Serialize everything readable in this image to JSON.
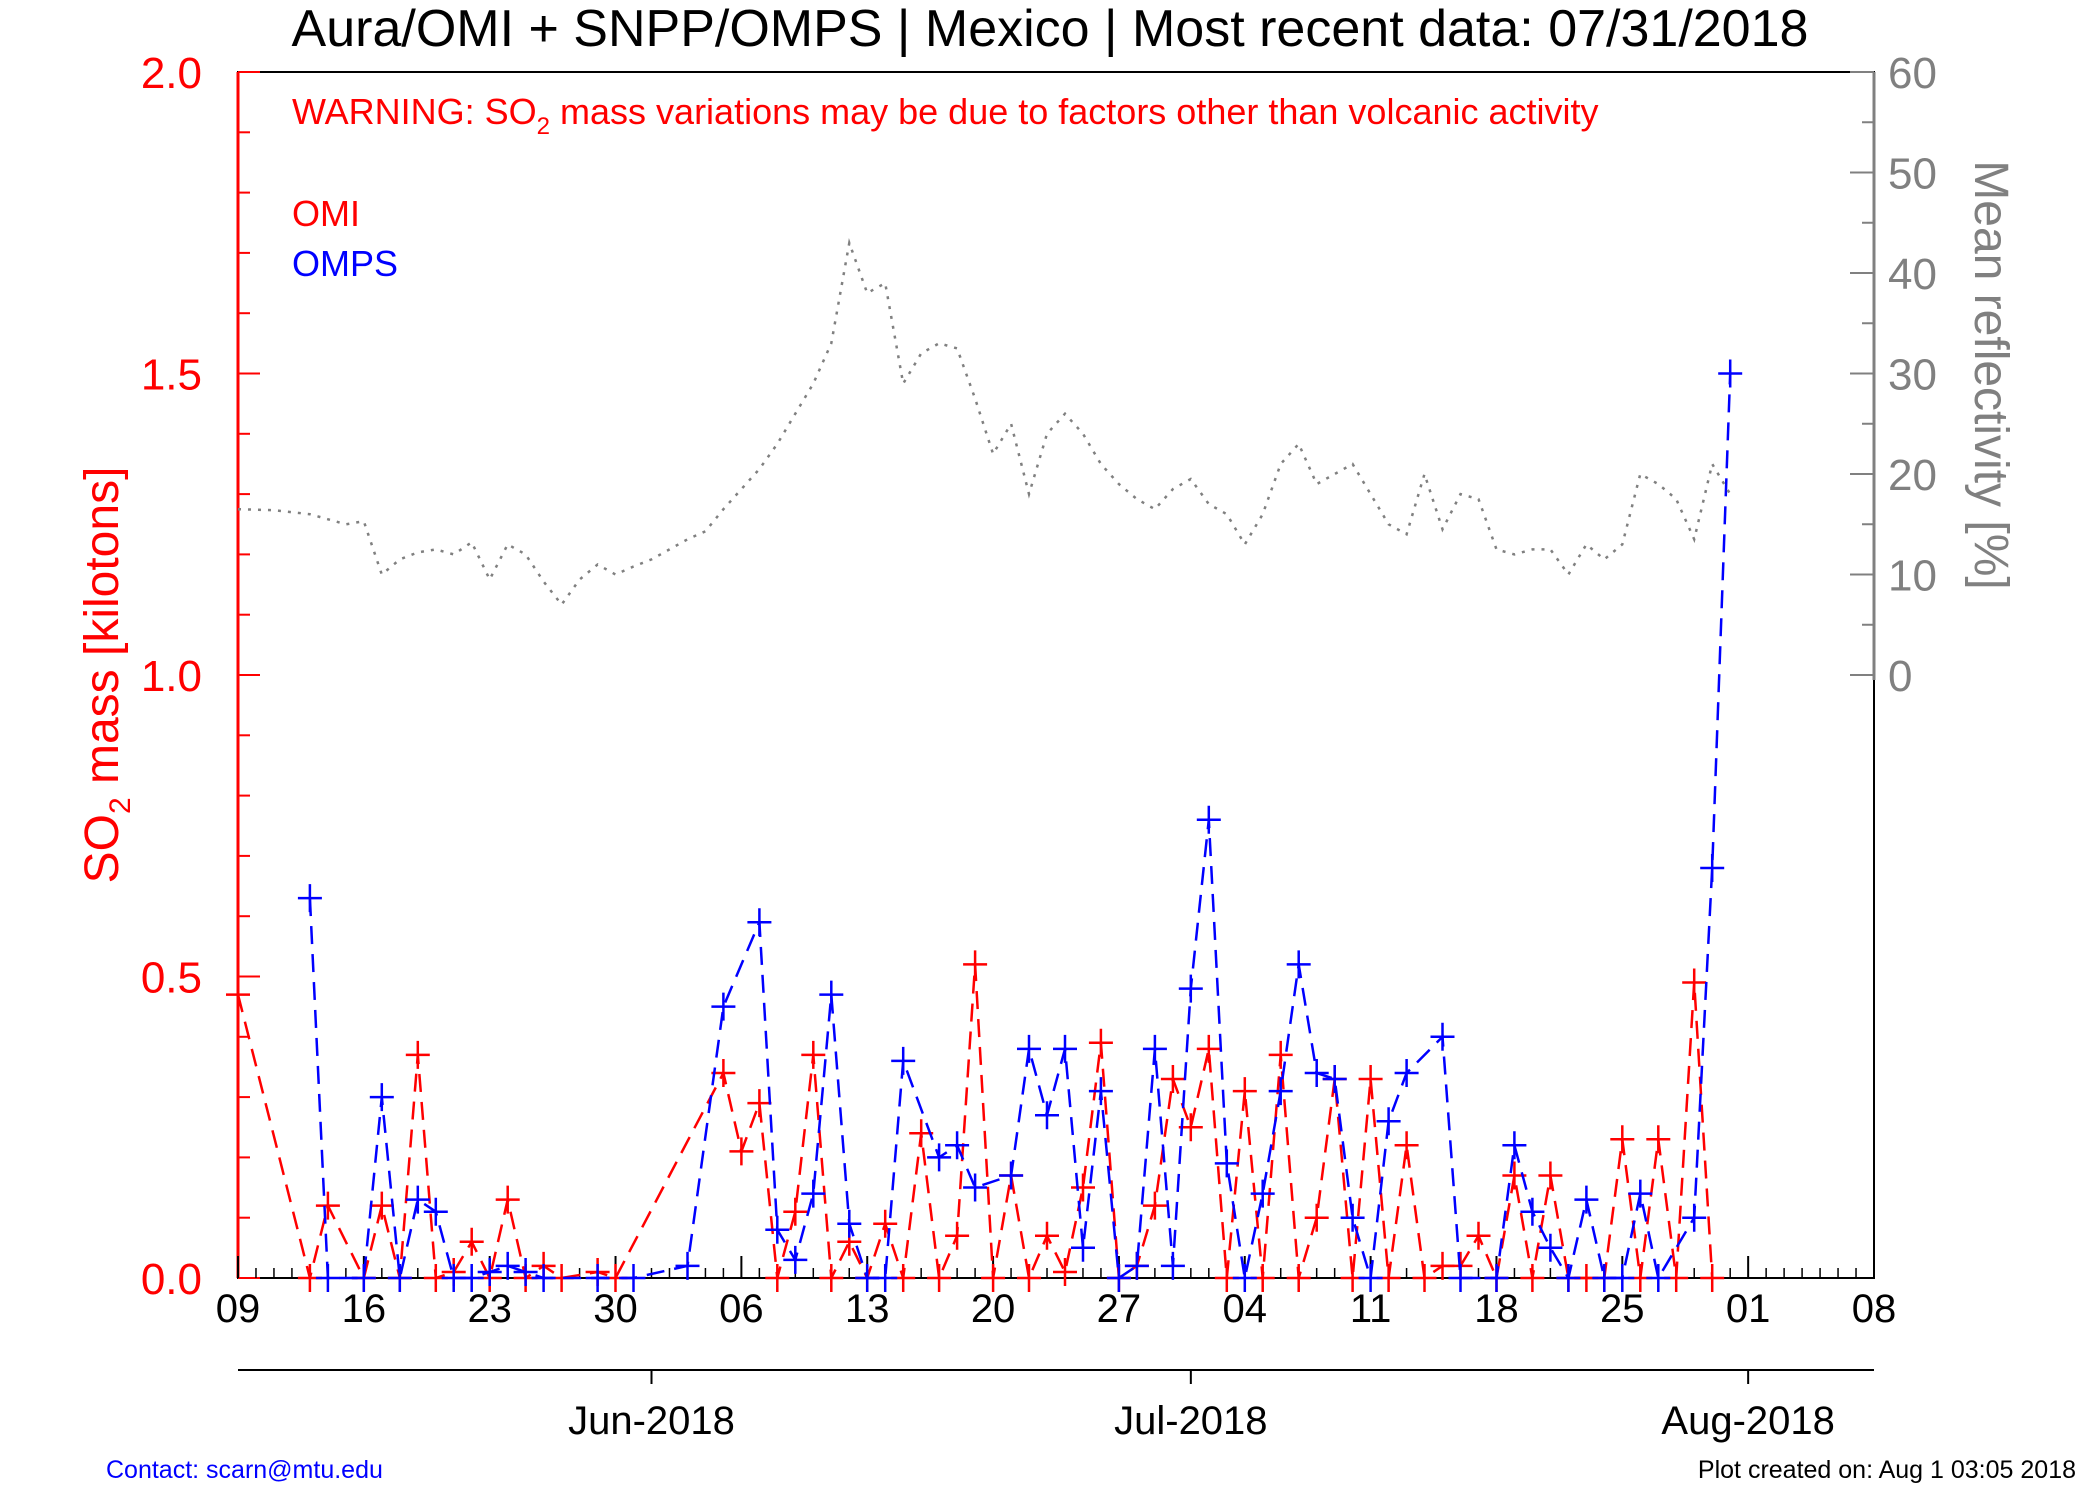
{
  "title": "Aura/OMI + SNPP/OMPS | Mexico | Most recent data: 07/31/2018",
  "warning": {
    "prefix": "WARNING: SO",
    "subscript": "2",
    "suffix": " mass variations may be due to factors other than volcanic activity"
  },
  "contact": "Contact: scarn@mtu.edu",
  "plot_created": "Plot created on: Aug  1 03:05 2018",
  "colors": {
    "omi": "#ff0000",
    "omps": "#0000ff",
    "reflectivity": "#808080",
    "axis": "#000000"
  },
  "chart_data": {
    "type": "line",
    "title": "Aura/OMI + SNPP/OMPS | Mexico | Most recent data: 07/31/2018",
    "ylabel_left": {
      "prefix": "SO",
      "subscript": "2",
      "suffix": " mass [kilotons]"
    },
    "ylabel_right": "Mean reflectivity [%]",
    "x_range": [
      "2018-05-09",
      "2018-08-08"
    ],
    "y_left_range": [
      0,
      2.0
    ],
    "y_right_range": [
      0,
      60
    ],
    "x_tick_labels": [
      "09",
      "16",
      "23",
      "30",
      "06",
      "13",
      "20",
      "27",
      "04",
      "11",
      "18",
      "25",
      "01",
      "08"
    ],
    "x_tick_dates": [
      "2018-05-09",
      "2018-05-16",
      "2018-05-23",
      "2018-05-30",
      "2018-06-06",
      "2018-06-13",
      "2018-06-20",
      "2018-06-27",
      "2018-07-04",
      "2018-07-11",
      "2018-07-18",
      "2018-07-25",
      "2018-08-01",
      "2018-08-08"
    ],
    "month_labels": [
      {
        "date": "2018-06-01",
        "label": "Jun-2018"
      },
      {
        "date": "2018-07-01",
        "label": "Jul-2018"
      },
      {
        "date": "2018-08-01",
        "label": "Aug-2018"
      }
    ],
    "y_left_ticks": [
      "0.0",
      "0.5",
      "1.0",
      "1.5",
      "2.0"
    ],
    "y_right_ticks": [
      "0",
      "10",
      "20",
      "30",
      "40",
      "50",
      "60"
    ],
    "grid": false,
    "legend": {
      "position": "top-left",
      "entries": [
        "OMI",
        "OMPS"
      ]
    },
    "series": [
      {
        "name": "OMI",
        "color": "#ff0000",
        "style": "dashed",
        "marker": "plus",
        "points": [
          [
            "2018-05-09",
            0.47
          ],
          [
            "2018-05-13",
            0.0
          ],
          [
            "2018-05-14",
            0.12
          ],
          [
            "2018-05-16",
            0.0
          ],
          [
            "2018-05-17",
            0.12
          ],
          [
            "2018-05-18",
            0.0
          ],
          [
            "2018-05-19",
            0.37
          ],
          [
            "2018-05-20",
            0.0
          ],
          [
            "2018-05-21",
            0.01
          ],
          [
            "2018-05-22",
            0.06
          ],
          [
            "2018-05-23",
            0.0
          ],
          [
            "2018-05-24",
            0.13
          ],
          [
            "2018-05-25",
            0.0
          ],
          [
            "2018-05-26",
            0.02
          ],
          [
            "2018-05-27",
            0.0
          ],
          [
            "2018-05-29",
            0.01
          ],
          [
            "2018-05-30",
            0.0
          ],
          [
            "2018-06-05",
            0.34
          ],
          [
            "2018-06-06",
            0.21
          ],
          [
            "2018-06-07",
            0.29
          ],
          [
            "2018-06-08",
            0.0
          ],
          [
            "2018-06-09",
            0.11
          ],
          [
            "2018-06-10",
            0.37
          ],
          [
            "2018-06-11",
            0.0
          ],
          [
            "2018-06-12",
            0.06
          ],
          [
            "2018-06-13",
            0.0
          ],
          [
            "2018-06-14",
            0.09
          ],
          [
            "2018-06-15",
            0.0
          ],
          [
            "2018-06-16",
            0.24
          ],
          [
            "2018-06-17",
            0.0
          ],
          [
            "2018-06-18",
            0.07
          ],
          [
            "2018-06-19",
            0.52
          ],
          [
            "2018-06-20",
            0.0
          ],
          [
            "2018-06-21",
            0.17
          ],
          [
            "2018-06-22",
            0.0
          ],
          [
            "2018-06-23",
            0.07
          ],
          [
            "2018-06-24",
            0.01
          ],
          [
            "2018-06-25",
            0.15
          ],
          [
            "2018-06-26",
            0.39
          ],
          [
            "2018-06-27",
            0.0
          ],
          [
            "2018-06-28",
            0.02
          ],
          [
            "2018-06-29",
            0.12
          ],
          [
            "2018-06-30",
            0.33
          ],
          [
            "2018-07-01",
            0.25
          ],
          [
            "2018-07-02",
            0.38
          ],
          [
            "2018-07-03",
            0.0
          ],
          [
            "2018-07-04",
            0.31
          ],
          [
            "2018-07-05",
            0.0
          ],
          [
            "2018-07-06",
            0.37
          ],
          [
            "2018-07-07",
            0.0
          ],
          [
            "2018-07-08",
            0.1
          ],
          [
            "2018-07-09",
            0.33
          ],
          [
            "2018-07-10",
            0.0
          ],
          [
            "2018-07-11",
            0.33
          ],
          [
            "2018-07-12",
            0.0
          ],
          [
            "2018-07-13",
            0.22
          ],
          [
            "2018-07-14",
            0.0
          ],
          [
            "2018-07-15",
            0.02
          ],
          [
            "2018-07-16",
            0.02
          ],
          [
            "2018-07-17",
            0.07
          ],
          [
            "2018-07-18",
            0.0
          ],
          [
            "2018-07-19",
            0.17
          ],
          [
            "2018-07-20",
            0.0
          ],
          [
            "2018-07-21",
            0.17
          ],
          [
            "2018-07-22",
            0.0
          ],
          [
            "2018-07-23",
            0.0
          ],
          [
            "2018-07-24",
            0.0
          ],
          [
            "2018-07-25",
            0.23
          ],
          [
            "2018-07-26",
            0.0
          ],
          [
            "2018-07-27",
            0.23
          ],
          [
            "2018-07-28",
            0.0
          ],
          [
            "2018-07-29",
            0.49
          ],
          [
            "2018-07-30",
            0.0
          ]
        ]
      },
      {
        "name": "OMPS",
        "color": "#0000ff",
        "style": "dashed",
        "marker": "plus",
        "points": [
          [
            "2018-05-13",
            0.63
          ],
          [
            "2018-05-14",
            0.0
          ],
          [
            "2018-05-16",
            0.0
          ],
          [
            "2018-05-17",
            0.3
          ],
          [
            "2018-05-18",
            0.0
          ],
          [
            "2018-05-19",
            0.13
          ],
          [
            "2018-05-20",
            0.11
          ],
          [
            "2018-05-21",
            0.0
          ],
          [
            "2018-05-22",
            0.0
          ],
          [
            "2018-05-23",
            0.01
          ],
          [
            "2018-05-24",
            0.02
          ],
          [
            "2018-05-25",
            0.01
          ],
          [
            "2018-05-26",
            0.0
          ],
          [
            "2018-05-29",
            0.0
          ],
          [
            "2018-05-31",
            0.0
          ],
          [
            "2018-06-03",
            0.02
          ],
          [
            "2018-06-05",
            0.45
          ],
          [
            "2018-06-07",
            0.59
          ],
          [
            "2018-06-08",
            0.08
          ],
          [
            "2018-06-09",
            0.03
          ],
          [
            "2018-06-10",
            0.14
          ],
          [
            "2018-06-11",
            0.47
          ],
          [
            "2018-06-12",
            0.09
          ],
          [
            "2018-06-13",
            0.0
          ],
          [
            "2018-06-14",
            0.0
          ],
          [
            "2018-06-15",
            0.36
          ],
          [
            "2018-06-17",
            0.2
          ],
          [
            "2018-06-18",
            0.22
          ],
          [
            "2018-06-19",
            0.15
          ],
          [
            "2018-06-21",
            0.17
          ],
          [
            "2018-06-22",
            0.38
          ],
          [
            "2018-06-23",
            0.27
          ],
          [
            "2018-06-24",
            0.38
          ],
          [
            "2018-06-25",
            0.05
          ],
          [
            "2018-06-26",
            0.31
          ],
          [
            "2018-06-27",
            0.0
          ],
          [
            "2018-06-28",
            0.02
          ],
          [
            "2018-06-29",
            0.38
          ],
          [
            "2018-06-30",
            0.02
          ],
          [
            "2018-07-01",
            0.48
          ],
          [
            "2018-07-02",
            0.76
          ],
          [
            "2018-07-03",
            0.19
          ],
          [
            "2018-07-04",
            0.0
          ],
          [
            "2018-07-05",
            0.14
          ],
          [
            "2018-07-06",
            0.31
          ],
          [
            "2018-07-07",
            0.52
          ],
          [
            "2018-07-08",
            0.34
          ],
          [
            "2018-07-09",
            0.33
          ],
          [
            "2018-07-10",
            0.1
          ],
          [
            "2018-07-11",
            0.0
          ],
          [
            "2018-07-12",
            0.26
          ],
          [
            "2018-07-13",
            0.34
          ],
          [
            "2018-07-15",
            0.4
          ],
          [
            "2018-07-16",
            0.0
          ],
          [
            "2018-07-18",
            0.0
          ],
          [
            "2018-07-19",
            0.22
          ],
          [
            "2018-07-20",
            0.11
          ],
          [
            "2018-07-21",
            0.05
          ],
          [
            "2018-07-22",
            0.0
          ],
          [
            "2018-07-23",
            0.13
          ],
          [
            "2018-07-24",
            0.0
          ],
          [
            "2018-07-25",
            0.0
          ],
          [
            "2018-07-26",
            0.14
          ],
          [
            "2018-07-27",
            0.0
          ],
          [
            "2018-07-29",
            0.1
          ],
          [
            "2018-07-30",
            0.68
          ],
          [
            "2018-07-31",
            1.5
          ]
        ]
      },
      {
        "name": "Mean reflectivity",
        "color": "#808080",
        "style": "dotted",
        "axis": "right",
        "points": [
          [
            "2018-05-09",
            16.5
          ],
          [
            "2018-05-11",
            16.4
          ],
          [
            "2018-05-13",
            16.0
          ],
          [
            "2018-05-15",
            15.0
          ],
          [
            "2018-05-16",
            15.3
          ],
          [
            "2018-05-17",
            10.0
          ],
          [
            "2018-05-18",
            11.5
          ],
          [
            "2018-05-19",
            12.2
          ],
          [
            "2018-05-20",
            12.5
          ],
          [
            "2018-05-21",
            12.0
          ],
          [
            "2018-05-22",
            13.2
          ],
          [
            "2018-05-23",
            9.5
          ],
          [
            "2018-05-24",
            13.0
          ],
          [
            "2018-05-25",
            12.0
          ],
          [
            "2018-05-26",
            9.3
          ],
          [
            "2018-05-27",
            7.0
          ],
          [
            "2018-05-28",
            9.5
          ],
          [
            "2018-05-29",
            11.0
          ],
          [
            "2018-05-30",
            10.0
          ],
          [
            "2018-05-31",
            10.8
          ],
          [
            "2018-06-01",
            11.5
          ],
          [
            "2018-06-02",
            12.5
          ],
          [
            "2018-06-03",
            13.5
          ],
          [
            "2018-06-04",
            14.3
          ],
          [
            "2018-06-05",
            16.5
          ],
          [
            "2018-06-06",
            18.5
          ],
          [
            "2018-06-07",
            20.5
          ],
          [
            "2018-06-08",
            23.0
          ],
          [
            "2018-06-09",
            26.0
          ],
          [
            "2018-06-10",
            29.0
          ],
          [
            "2018-06-11",
            33.0
          ],
          [
            "2018-06-12",
            43.0
          ],
          [
            "2018-06-13",
            38.0
          ],
          [
            "2018-06-14",
            39.0
          ],
          [
            "2018-06-15",
            29.0
          ],
          [
            "2018-06-16",
            32.0
          ],
          [
            "2018-06-17",
            33.0
          ],
          [
            "2018-06-18",
            32.5
          ],
          [
            "2018-06-19",
            27.5
          ],
          [
            "2018-06-20",
            22.0
          ],
          [
            "2018-06-21",
            25.0
          ],
          [
            "2018-06-22",
            18.0
          ],
          [
            "2018-06-23",
            24.0
          ],
          [
            "2018-06-24",
            26.0
          ],
          [
            "2018-06-25",
            24.0
          ],
          [
            "2018-06-26",
            21.0
          ],
          [
            "2018-06-27",
            19.0
          ],
          [
            "2018-06-28",
            17.5
          ],
          [
            "2018-06-29",
            16.5
          ],
          [
            "2018-06-30",
            18.5
          ],
          [
            "2018-07-01",
            19.5
          ],
          [
            "2018-07-02",
            17.0
          ],
          [
            "2018-07-03",
            16.0
          ],
          [
            "2018-07-04",
            13.0
          ],
          [
            "2018-07-05",
            16.0
          ],
          [
            "2018-07-06",
            21.0
          ],
          [
            "2018-07-07",
            23.0
          ],
          [
            "2018-07-08",
            19.0
          ],
          [
            "2018-07-09",
            20.0
          ],
          [
            "2018-07-10",
            21.0
          ],
          [
            "2018-07-11",
            18.0
          ],
          [
            "2018-07-12",
            15.0
          ],
          [
            "2018-07-13",
            14.0
          ],
          [
            "2018-07-14",
            20.0
          ],
          [
            "2018-07-15",
            14.5
          ],
          [
            "2018-07-16",
            18.0
          ],
          [
            "2018-07-17",
            17.5
          ],
          [
            "2018-07-18",
            12.5
          ],
          [
            "2018-07-19",
            12.0
          ],
          [
            "2018-07-20",
            12.5
          ],
          [
            "2018-07-21",
            12.5
          ],
          [
            "2018-07-22",
            10.0
          ],
          [
            "2018-07-23",
            13.0
          ],
          [
            "2018-07-24",
            11.5
          ],
          [
            "2018-07-25",
            13.0
          ],
          [
            "2018-07-26",
            20.0
          ],
          [
            "2018-07-27",
            19.0
          ],
          [
            "2018-07-28",
            17.5
          ],
          [
            "2018-07-29",
            13.5
          ],
          [
            "2018-07-30",
            21.0
          ],
          [
            "2018-07-31",
            18.0
          ]
        ]
      }
    ]
  }
}
